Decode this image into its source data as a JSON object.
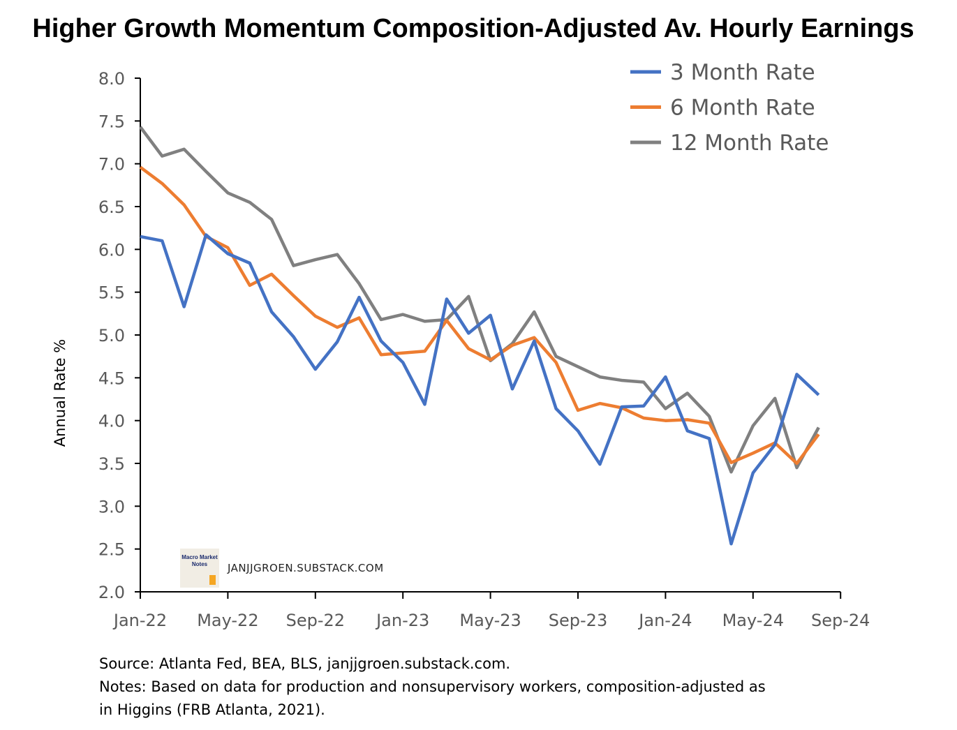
{
  "chart_data": {
    "type": "line",
    "title": "Higher Growth Momentum Composition-Adjusted Av. Hourly Earnings",
    "xlabel": "",
    "ylabel": "Annual Rate %",
    "ylim": [
      2.0,
      8.0
    ],
    "yticks": [
      "2.0",
      "2.5",
      "3.0",
      "3.5",
      "4.0",
      "4.5",
      "5.0",
      "5.5",
      "6.0",
      "6.5",
      "7.0",
      "7.5",
      "8.0"
    ],
    "xtick_labels": [
      "Jan-22",
      "May-22",
      "Sep-22",
      "Jan-23",
      "May-23",
      "Sep-23",
      "Jan-24",
      "May-24",
      "Sep-24"
    ],
    "x": [
      "Jan-22",
      "Feb-22",
      "Mar-22",
      "Apr-22",
      "May-22",
      "Jun-22",
      "Jul-22",
      "Aug-22",
      "Sep-22",
      "Oct-22",
      "Nov-22",
      "Dec-22",
      "Jan-23",
      "Feb-23",
      "Mar-23",
      "Apr-23",
      "May-23",
      "Jun-23",
      "Jul-23",
      "Aug-23",
      "Sep-23",
      "Oct-23",
      "Nov-23",
      "Dec-23",
      "Jan-24",
      "Feb-24",
      "Mar-24",
      "Apr-24",
      "May-24",
      "Jun-24",
      "Jul-24",
      "Aug-24"
    ],
    "legend_position": "top-right",
    "grid": false,
    "series": [
      {
        "name": "3 Month Rate",
        "color": "#4472C4",
        "values": [
          6.15,
          6.1,
          5.33,
          6.17,
          5.95,
          5.84,
          5.27,
          4.98,
          4.6,
          4.92,
          5.44,
          4.93,
          4.68,
          4.19,
          5.42,
          5.02,
          5.23,
          4.37,
          4.93,
          4.14,
          3.88,
          3.49,
          4.16,
          4.17,
          4.51,
          3.88,
          3.79,
          2.56,
          3.39,
          3.72,
          4.54,
          4.3
        ]
      },
      {
        "name": "6 Month Rate",
        "color": "#ED7D31",
        "values": [
          6.96,
          6.77,
          6.52,
          6.15,
          6.02,
          5.58,
          5.71,
          5.46,
          5.22,
          5.09,
          5.2,
          4.77,
          4.79,
          4.81,
          5.17,
          4.84,
          4.71,
          4.88,
          4.97,
          4.68,
          4.12,
          4.2,
          4.15,
          4.03,
          4.0,
          4.01,
          3.97,
          3.51,
          3.62,
          3.74,
          3.5,
          3.84
        ]
      },
      {
        "name": "12 Month Rate",
        "color": "#808080",
        "values": [
          7.43,
          7.09,
          7.17,
          6.91,
          6.66,
          6.55,
          6.35,
          5.81,
          5.88,
          5.94,
          5.6,
          5.18,
          5.24,
          5.16,
          5.18,
          5.45,
          4.7,
          4.9,
          5.27,
          4.75,
          4.63,
          4.51,
          4.47,
          4.45,
          4.14,
          4.32,
          4.05,
          3.4,
          3.94,
          4.26,
          3.45,
          3.92
        ]
      }
    ]
  },
  "watermark": {
    "logo_text": "Macro Market Notes",
    "site": "JANJJGROEN.SUBSTACK.COM"
  },
  "notes": {
    "source": "Source: Atlanta Fed, BEA, BLS, janjjgroen.substack.com.",
    "line1": "Notes: Based on data for production and nonsupervisory workers, composition-adjusted as",
    "line2": "in Higgins (FRB Atlanta, 2021)."
  }
}
